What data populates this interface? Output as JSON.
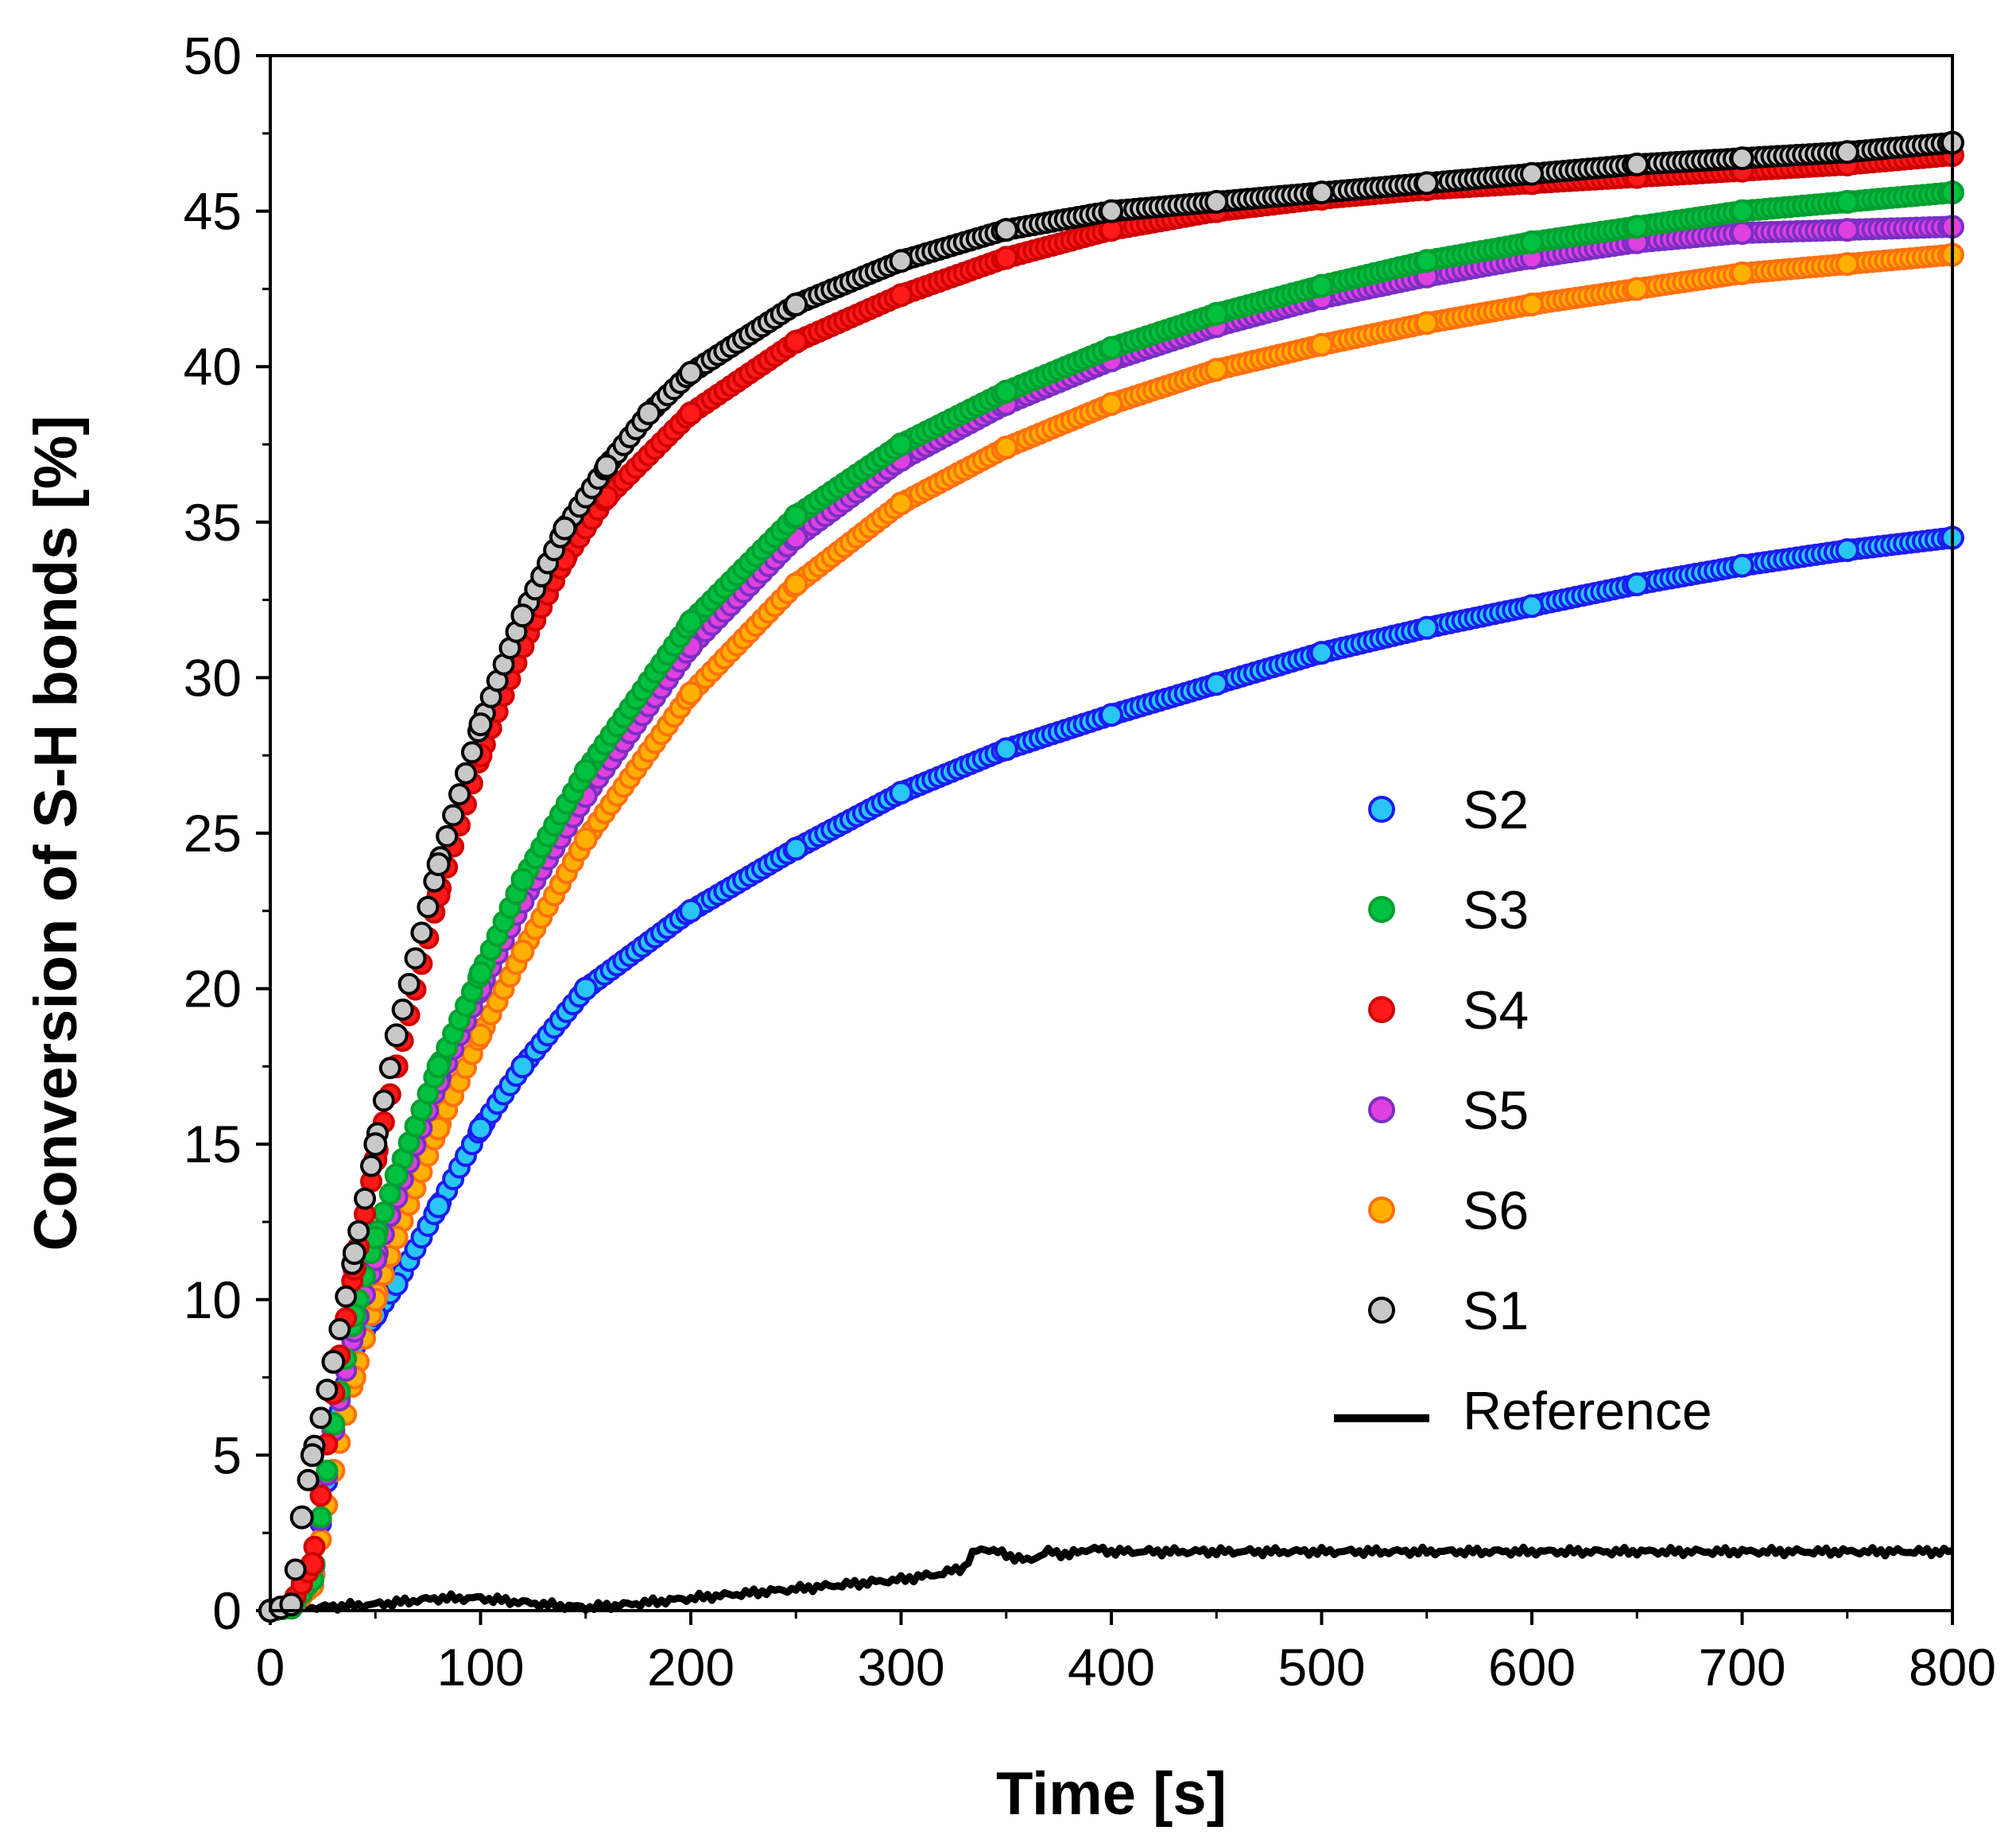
{
  "chart_data": {
    "type": "scatter",
    "title": "",
    "xlabel": "Time [s]",
    "ylabel": "Conversion of S-H bonds [%]",
    "xlim": [
      0,
      800
    ],
    "ylim": [
      0,
      50
    ],
    "xticks": [
      0,
      100,
      200,
      300,
      400,
      500,
      600,
      700,
      800
    ],
    "yticks": [
      0,
      5,
      10,
      15,
      20,
      25,
      30,
      35,
      40,
      45,
      50
    ],
    "grid": false,
    "legend_position": "center-right",
    "series": [
      {
        "name": "S2",
        "marker": "circle",
        "fill": "#29c6f4",
        "edge": "#1c1cf0",
        "x": [
          0,
          10,
          20,
          30,
          40,
          50,
          60,
          80,
          100,
          120,
          150,
          200,
          250,
          300,
          350,
          400,
          450,
          500,
          550,
          600,
          650,
          700,
          750,
          800
        ],
        "y": [
          0,
          0.1,
          1.0,
          5.5,
          8.5,
          9.5,
          10.5,
          13.0,
          15.5,
          17.5,
          20.0,
          22.5,
          24.5,
          26.3,
          27.7,
          28.8,
          29.8,
          30.8,
          31.6,
          32.3,
          33.0,
          33.6,
          34.1,
          34.5
        ]
      },
      {
        "name": "S3",
        "marker": "circle",
        "fill": "#00c040",
        "edge": "#00a030",
        "x": [
          0,
          10,
          20,
          30,
          40,
          50,
          60,
          80,
          100,
          120,
          150,
          200,
          250,
          300,
          350,
          400,
          450,
          500,
          550,
          600,
          650,
          700,
          750,
          800
        ],
        "y": [
          0,
          0.1,
          1.0,
          6.0,
          9.5,
          12.0,
          14.0,
          17.5,
          20.5,
          23.5,
          27.0,
          31.8,
          35.2,
          37.5,
          39.2,
          40.6,
          41.7,
          42.6,
          43.4,
          44.0,
          44.5,
          45.0,
          45.3,
          45.6
        ]
      },
      {
        "name": "S4",
        "marker": "circle",
        "fill": "#ff1a1a",
        "edge": "#d00000",
        "x": [
          0,
          10,
          20,
          30,
          40,
          50,
          60,
          80,
          100,
          120,
          140,
          160,
          200,
          250,
          300,
          350,
          400,
          450,
          500,
          550,
          600,
          650,
          700,
          750,
          800
        ],
        "y": [
          0,
          0.2,
          1.5,
          7.0,
          11.0,
          14.5,
          17.5,
          23.0,
          27.5,
          31.0,
          33.8,
          35.8,
          38.5,
          40.8,
          42.3,
          43.5,
          44.4,
          45.0,
          45.4,
          45.7,
          45.9,
          46.1,
          46.3,
          46.5,
          46.8
        ]
      },
      {
        "name": "S5",
        "marker": "circle",
        "fill": "#e040e0",
        "edge": "#7a2fc4",
        "x": [
          0,
          10,
          20,
          30,
          40,
          50,
          60,
          80,
          100,
          120,
          150,
          200,
          250,
          300,
          350,
          400,
          450,
          500,
          550,
          600,
          650,
          700,
          750,
          800
        ],
        "y": [
          0,
          0.1,
          1.0,
          5.8,
          9.0,
          11.3,
          13.3,
          17.0,
          20.0,
          22.8,
          26.2,
          31.0,
          34.5,
          37.0,
          38.8,
          40.2,
          41.3,
          42.2,
          42.9,
          43.5,
          44.0,
          44.3,
          44.4,
          44.5
        ]
      },
      {
        "name": "S6",
        "marker": "circle",
        "fill": "#ffb000",
        "edge": "#ff7010",
        "x": [
          0,
          10,
          20,
          30,
          40,
          50,
          60,
          80,
          100,
          120,
          150,
          200,
          250,
          300,
          350,
          400,
          450,
          500,
          550,
          600,
          650,
          700,
          750,
          800
        ],
        "y": [
          0,
          0.1,
          0.8,
          4.5,
          7.5,
          10.0,
          12.0,
          15.5,
          18.5,
          21.2,
          24.8,
          29.5,
          33.0,
          35.6,
          37.4,
          38.8,
          39.9,
          40.7,
          41.4,
          42.0,
          42.5,
          43.0,
          43.3,
          43.6
        ]
      },
      {
        "name": "S1",
        "marker": "circle",
        "fill": "#c8c8c8",
        "edge": "#000000",
        "x": [
          0,
          5,
          10,
          15,
          20,
          30,
          40,
          50,
          60,
          80,
          100,
          120,
          140,
          160,
          180,
          200,
          250,
          300,
          350,
          400,
          450,
          500,
          550,
          600,
          650,
          700,
          750,
          800
        ],
        "y": [
          0,
          0.1,
          0.2,
          3.0,
          5.0,
          8.0,
          11.5,
          15.0,
          18.5,
          24.0,
          28.5,
          32.0,
          34.8,
          36.8,
          38.5,
          39.8,
          42.0,
          43.4,
          44.4,
          45.0,
          45.3,
          45.6,
          45.9,
          46.2,
          46.5,
          46.7,
          46.9,
          47.2
        ]
      },
      {
        "name": "Reference",
        "marker": "line",
        "fill": "#000000",
        "edge": "#000000",
        "x": [
          0,
          20,
          50,
          80,
          100,
          130,
          150,
          170,
          200,
          250,
          300,
          320,
          330,
          335,
          340,
          350,
          360,
          370,
          380,
          390,
          400,
          500,
          600,
          700,
          800
        ],
        "y": [
          0,
          0.1,
          0.2,
          0.4,
          0.4,
          0.2,
          0.1,
          0.2,
          0.4,
          0.7,
          1.0,
          1.2,
          1.4,
          1.9,
          2.0,
          1.8,
          1.6,
          1.9,
          1.8,
          2.0,
          1.9,
          1.9,
          1.9,
          1.9,
          1.9
        ]
      }
    ]
  }
}
